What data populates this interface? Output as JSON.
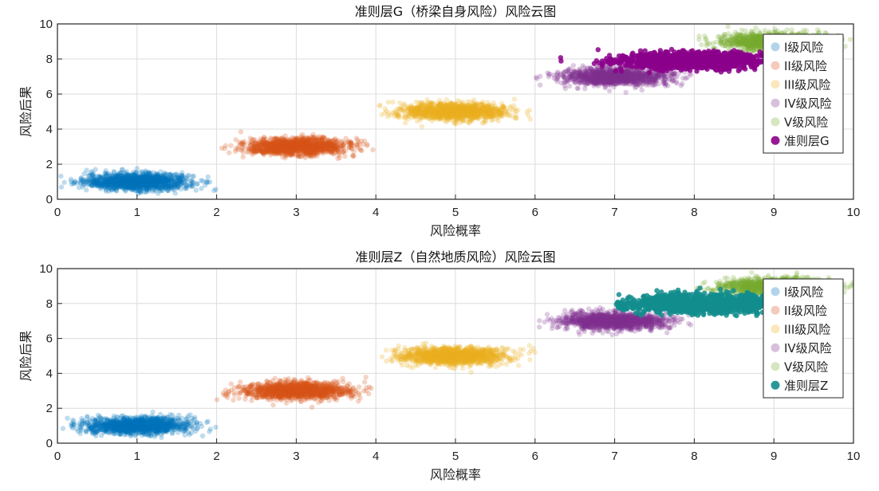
{
  "chart_data": [
    {
      "type": "scatter",
      "title": "准则层G（桥梁自身风险）风险云图",
      "xlabel": "风险概率",
      "ylabel": "风险后果",
      "xlim": [
        0,
        10
      ],
      "ylim": [
        0,
        10
      ],
      "xticks": [
        "0",
        "1",
        "2",
        "3",
        "4",
        "5",
        "6",
        "7",
        "8",
        "9",
        "10"
      ],
      "yticks": [
        "0",
        "2",
        "4",
        "6",
        "8",
        "10"
      ],
      "grid": true,
      "legend_position": "right",
      "series": [
        {
          "name": "I级风险",
          "color": "#0072BD",
          "opacity": 0.25,
          "center": [
            1,
            1
          ],
          "spread": [
            0.33,
            0.24
          ],
          "x_range": [
            0,
            2
          ],
          "y_range": [
            0.3,
            1.9
          ],
          "count": 1300
        },
        {
          "name": "II级风险",
          "color": "#D95319",
          "opacity": 0.25,
          "center": [
            3,
            3
          ],
          "spread": [
            0.33,
            0.24
          ],
          "x_range": [
            2,
            4
          ],
          "y_range": [
            1.5,
            4.3
          ],
          "count": 1300
        },
        {
          "name": "III级风险",
          "color": "#EDB120",
          "opacity": 0.25,
          "center": [
            5,
            5
          ],
          "spread": [
            0.33,
            0.24
          ],
          "x_range": [
            4,
            6
          ],
          "y_range": [
            3.9,
            6.1
          ],
          "count": 1300
        },
        {
          "name": "IV级风险",
          "color": "#7E2F8E",
          "opacity": 0.25,
          "center": [
            7,
            7
          ],
          "spread": [
            0.33,
            0.24
          ],
          "x_range": [
            6,
            8
          ],
          "y_range": [
            5.9,
            8.3
          ],
          "count": 1300
        },
        {
          "name": "V级风险",
          "color": "#77AC30",
          "opacity": 0.25,
          "center": [
            9,
            9
          ],
          "spread": [
            0.33,
            0.24
          ],
          "x_range": [
            8,
            10
          ],
          "y_range": [
            8.0,
            9.9
          ],
          "count": 1300
        },
        {
          "name": "准则层G",
          "color": "#8B008B",
          "opacity": 0.85,
          "center": [
            8.0,
            7.9
          ],
          "spread": [
            0.45,
            0.22
          ],
          "x_range": [
            6.3,
            9.6
          ],
          "y_range": [
            7.2,
            8.8
          ],
          "count": 1600
        }
      ]
    },
    {
      "type": "scatter",
      "title": "准则层Z（自然地质风险）风险云图",
      "xlabel": "风险概率",
      "ylabel": "风险后果",
      "xlim": [
        0,
        10
      ],
      "ylim": [
        0,
        10
      ],
      "xticks": [
        "0",
        "1",
        "2",
        "3",
        "4",
        "5",
        "6",
        "7",
        "8",
        "9",
        "10"
      ],
      "yticks": [
        "0",
        "2",
        "4",
        "6",
        "8",
        "10"
      ],
      "grid": true,
      "legend_position": "right",
      "series": [
        {
          "name": "I级风险",
          "color": "#0072BD",
          "opacity": 0.25,
          "center": [
            1,
            1
          ],
          "spread": [
            0.33,
            0.24
          ],
          "x_range": [
            0,
            2
          ],
          "y_range": [
            0.3,
            1.9
          ],
          "count": 1300
        },
        {
          "name": "II级风险",
          "color": "#D95319",
          "opacity": 0.25,
          "center": [
            3,
            3
          ],
          "spread": [
            0.33,
            0.24
          ],
          "x_range": [
            2,
            4
          ],
          "y_range": [
            1.5,
            4.3
          ],
          "count": 1300
        },
        {
          "name": "III级风险",
          "color": "#EDB120",
          "opacity": 0.25,
          "center": [
            5,
            5
          ],
          "spread": [
            0.33,
            0.24
          ],
          "x_range": [
            4,
            6
          ],
          "y_range": [
            3.9,
            6.1
          ],
          "count": 1300
        },
        {
          "name": "IV级风险",
          "color": "#7E2F8E",
          "opacity": 0.25,
          "center": [
            7,
            7
          ],
          "spread": [
            0.33,
            0.24
          ],
          "x_range": [
            6,
            8
          ],
          "y_range": [
            5.9,
            8.3
          ],
          "count": 1300
        },
        {
          "name": "V级风险",
          "color": "#77AC30",
          "opacity": 0.25,
          "center": [
            9,
            9
          ],
          "spread": [
            0.33,
            0.24
          ],
          "x_range": [
            8,
            10
          ],
          "y_range": [
            8.0,
            9.9
          ],
          "count": 1300
        },
        {
          "name": "准则层Z",
          "color": "#138D8D",
          "opacity": 0.85,
          "center": [
            8.1,
            8.0
          ],
          "spread": [
            0.5,
            0.25
          ],
          "x_range": [
            7.0,
            9.7
          ],
          "y_range": [
            7.3,
            9.0
          ],
          "count": 1400
        }
      ]
    }
  ]
}
